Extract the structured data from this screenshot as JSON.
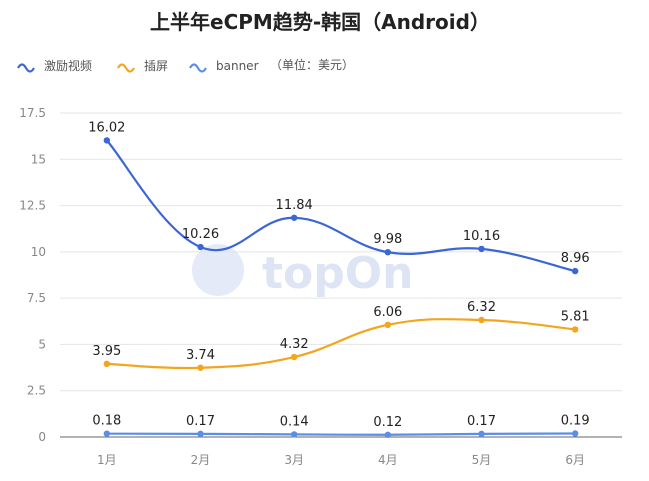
{
  "chart_data": {
    "type": "line",
    "title": "上半年eCPM趋势-韩国（Android）",
    "unit_note": "（单位：美元）",
    "categories": [
      "1月",
      "2月",
      "3月",
      "4月",
      "5月",
      "6月"
    ],
    "series": [
      {
        "name": "激励视频",
        "color": "#3a66d6",
        "values": [
          16.02,
          10.26,
          11.84,
          9.98,
          10.16,
          8.96
        ]
      },
      {
        "name": "插屏",
        "color": "#f2a61f",
        "values": [
          3.95,
          3.74,
          4.32,
          6.06,
          6.32,
          5.81
        ]
      },
      {
        "name": "banner",
        "color": "#5b8fe6",
        "values": [
          0.18,
          0.17,
          0.14,
          0.12,
          0.17,
          0.19
        ]
      }
    ],
    "ylim": [
      0,
      17.5
    ],
    "yticks": [
      "0",
      "2.5",
      "5",
      "7.5",
      "10",
      "12.5",
      "15",
      "17.5"
    ],
    "grid": true,
    "legend_position": "top-left",
    "watermark": "topOn"
  }
}
